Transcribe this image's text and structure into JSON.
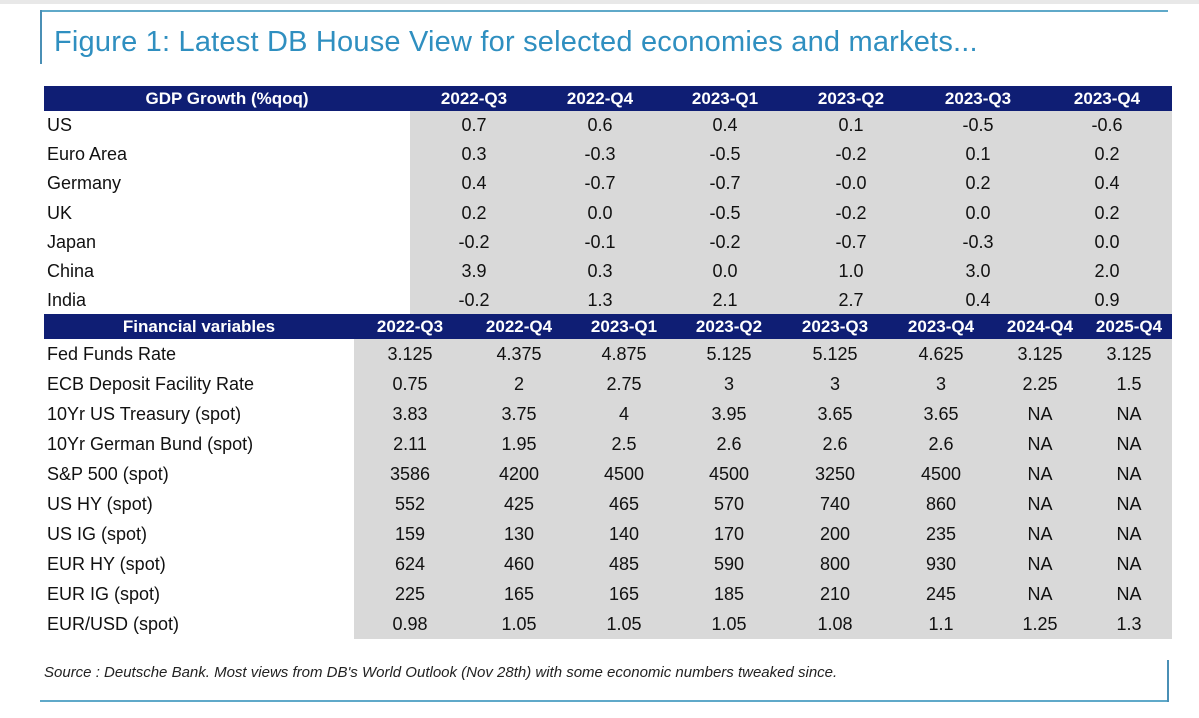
{
  "title": "Figure 1: Latest DB House View for selected economies and markets...",
  "gdp_table": {
    "header_label": "GDP Growth (%qoq)",
    "columns": [
      "2022-Q3",
      "2022-Q4",
      "2023-Q1",
      "2023-Q2",
      "2023-Q3",
      "2023-Q4"
    ],
    "rows": [
      {
        "label": "US",
        "values": [
          "0.7",
          "0.6",
          "0.4",
          "0.1",
          "-0.5",
          "-0.6"
        ]
      },
      {
        "label": "Euro Area",
        "values": [
          "0.3",
          "-0.3",
          "-0.5",
          "-0.2",
          "0.1",
          "0.2"
        ]
      },
      {
        "label": "Germany",
        "values": [
          "0.4",
          "-0.7",
          "-0.7",
          "-0.0",
          "0.2",
          "0.4"
        ]
      },
      {
        "label": "UK",
        "values": [
          "0.2",
          "0.0",
          "-0.5",
          "-0.2",
          "0.0",
          "0.2"
        ]
      },
      {
        "label": "Japan",
        "values": [
          "-0.2",
          "-0.1",
          "-0.2",
          "-0.7",
          "-0.3",
          "0.0"
        ]
      },
      {
        "label": "China",
        "values": [
          "3.9",
          "0.3",
          "0.0",
          "1.0",
          "3.0",
          "2.0"
        ]
      },
      {
        "label": "India",
        "values": [
          "-0.2",
          "1.3",
          "2.1",
          "2.7",
          "0.4",
          "0.9"
        ]
      }
    ]
  },
  "fin_table": {
    "header_label": "Financial variables",
    "columns": [
      "2022-Q3",
      "2022-Q4",
      "2023-Q1",
      "2023-Q2",
      "2023-Q3",
      "2023-Q4",
      "2024-Q4",
      "2025-Q4"
    ],
    "rows": [
      {
        "label": "Fed Funds Rate",
        "values": [
          "3.125",
          "4.375",
          "4.875",
          "5.125",
          "5.125",
          "4.625",
          "3.125",
          "3.125"
        ]
      },
      {
        "label": "ECB Deposit Facility Rate",
        "values": [
          "0.75",
          "2",
          "2.75",
          "3",
          "3",
          "3",
          "2.25",
          "1.5"
        ]
      },
      {
        "label": "10Yr US Treasury (spot)",
        "values": [
          "3.83",
          "3.75",
          "4",
          "3.95",
          "3.65",
          "3.65",
          "NA",
          "NA"
        ]
      },
      {
        "label": "10Yr German Bund (spot)",
        "values": [
          "2.11",
          "1.95",
          "2.5",
          "2.6",
          "2.6",
          "2.6",
          "NA",
          "NA"
        ]
      },
      {
        "label": "S&P 500 (spot)",
        "values": [
          "3586",
          "4200",
          "4500",
          "4500",
          "3250",
          "4500",
          "NA",
          "NA"
        ]
      },
      {
        "label": "US HY (spot)",
        "values": [
          "552",
          "425",
          "465",
          "570",
          "740",
          "860",
          "NA",
          "NA"
        ]
      },
      {
        "label": "US IG (spot)",
        "values": [
          "159",
          "130",
          "140",
          "170",
          "200",
          "235",
          "NA",
          "NA"
        ]
      },
      {
        "label": "EUR HY (spot)",
        "values": [
          "624",
          "460",
          "485",
          "590",
          "800",
          "930",
          "NA",
          "NA"
        ]
      },
      {
        "label": "EUR IG (spot)",
        "values": [
          "225",
          "165",
          "165",
          "185",
          "210",
          "245",
          "NA",
          "NA"
        ]
      },
      {
        "label": "EUR/USD (spot)",
        "values": [
          "0.98",
          "1.05",
          "1.05",
          "1.05",
          "1.08",
          "1.1",
          "1.25",
          "1.3"
        ]
      }
    ]
  },
  "source": "Source : Deutsche Bank. Most views from DB's World Outlook (Nov 28th) with some economic numbers tweaked since.",
  "colors": {
    "header_bg": "#0f1e74",
    "title": "#2f8fc0",
    "value_bg": "#d9d9d9",
    "rule": "#5fa9c9"
  }
}
